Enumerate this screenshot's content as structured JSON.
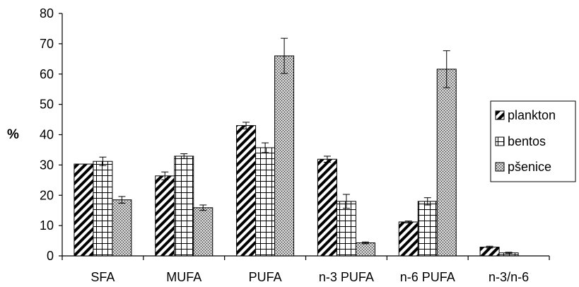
{
  "chart_data": {
    "type": "bar",
    "title": "",
    "xlabel": "",
    "ylabel": "%",
    "ylim": [
      0,
      80
    ],
    "yticks": [
      0,
      10,
      20,
      30,
      40,
      50,
      60,
      70,
      80
    ],
    "grid": false,
    "legend_position": "right",
    "categories": [
      "SFA",
      "MUFA",
      "PUFA",
      "n-3 PUFA",
      "n-6 PUFA",
      "n-3/n-6"
    ],
    "series": [
      {
        "name": "plankton",
        "pattern": "diagonal-hatch",
        "values": [
          30.3,
          26.4,
          43.0,
          31.9,
          11.2,
          2.9
        ],
        "errors": [
          0.0,
          1.3,
          1.1,
          1.0,
          0.3,
          0.3
        ]
      },
      {
        "name": "bentos",
        "pattern": "grid",
        "values": [
          31.2,
          32.9,
          35.7,
          18.0,
          18.0,
          1.0
        ],
        "errors": [
          1.4,
          0.8,
          1.6,
          2.3,
          1.2,
          0.2
        ]
      },
      {
        "name": "pšenice",
        "pattern": "crosshatch-dense",
        "values": [
          18.5,
          15.9,
          66.0,
          4.3,
          61.6,
          0.0
        ],
        "errors": [
          1.1,
          0.9,
          5.8,
          0.3,
          6.1,
          0.0
        ]
      }
    ]
  }
}
